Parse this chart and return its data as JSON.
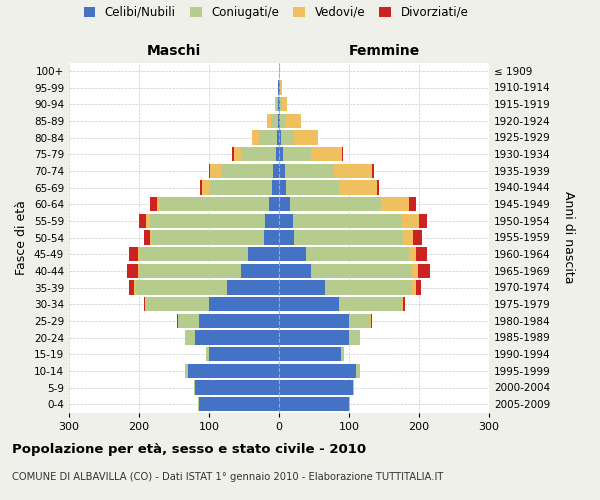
{
  "age_groups": [
    "0-4",
    "5-9",
    "10-14",
    "15-19",
    "20-24",
    "25-29",
    "30-34",
    "35-39",
    "40-44",
    "45-49",
    "50-54",
    "55-59",
    "60-64",
    "65-69",
    "70-74",
    "75-79",
    "80-84",
    "85-89",
    "90-94",
    "95-99",
    "100+"
  ],
  "birth_years": [
    "2005-2009",
    "2000-2004",
    "1995-1999",
    "1990-1994",
    "1985-1989",
    "1980-1984",
    "1975-1979",
    "1970-1974",
    "1965-1969",
    "1960-1964",
    "1955-1959",
    "1950-1954",
    "1945-1949",
    "1940-1944",
    "1935-1939",
    "1930-1934",
    "1925-1929",
    "1920-1924",
    "1915-1919",
    "1910-1914",
    "≤ 1909"
  ],
  "male": {
    "celibi": [
      115,
      120,
      130,
      100,
      120,
      115,
      100,
      75,
      55,
      45,
      22,
      20,
      15,
      10,
      8,
      5,
      3,
      2,
      1,
      1,
      0
    ],
    "coniugati": [
      1,
      2,
      5,
      5,
      15,
      30,
      90,
      130,
      145,
      155,
      160,
      165,
      155,
      90,
      75,
      50,
      25,
      10,
      4,
      1,
      0
    ],
    "vedovi": [
      0,
      0,
      0,
      0,
      0,
      0,
      1,
      2,
      2,
      2,
      3,
      5,
      5,
      10,
      15,
      10,
      10,
      5,
      1,
      0,
      0
    ],
    "divorziati": [
      0,
      0,
      0,
      0,
      0,
      1,
      2,
      8,
      15,
      12,
      8,
      10,
      10,
      3,
      2,
      2,
      0,
      0,
      0,
      0,
      0
    ]
  },
  "female": {
    "nubili": [
      100,
      105,
      110,
      88,
      100,
      100,
      85,
      65,
      45,
      38,
      22,
      20,
      15,
      10,
      8,
      5,
      3,
      2,
      1,
      1,
      0
    ],
    "coniugate": [
      1,
      2,
      5,
      5,
      15,
      30,
      90,
      125,
      145,
      148,
      155,
      155,
      130,
      75,
      70,
      40,
      18,
      8,
      3,
      1,
      0
    ],
    "vedove": [
      0,
      0,
      0,
      0,
      0,
      1,
      2,
      5,
      8,
      10,
      15,
      25,
      40,
      55,
      55,
      45,
      35,
      22,
      8,
      2,
      1
    ],
    "divorziate": [
      0,
      0,
      0,
      0,
      0,
      2,
      3,
      8,
      18,
      15,
      12,
      12,
      10,
      3,
      2,
      2,
      0,
      0,
      0,
      0,
      0
    ]
  },
  "colors": {
    "celibi_nubili": "#4472c4",
    "coniugati": "#b5cc8e",
    "vedovi": "#f0c060",
    "divorziati": "#cc2222"
  },
  "xlim": 300,
  "title": "Popolazione per età, sesso e stato civile - 2010",
  "subtitle": "COMUNE DI ALBAVILLA (CO) - Dati ISTAT 1° gennaio 2010 - Elaborazione TUTTITALIA.IT",
  "ylabel_left": "Fasce di età",
  "ylabel_right": "Anni di nascita",
  "xlabel_left": "Maschi",
  "xlabel_right": "Femmine",
  "bg_color": "#f0f0eb",
  "plot_bg": "#ffffff"
}
